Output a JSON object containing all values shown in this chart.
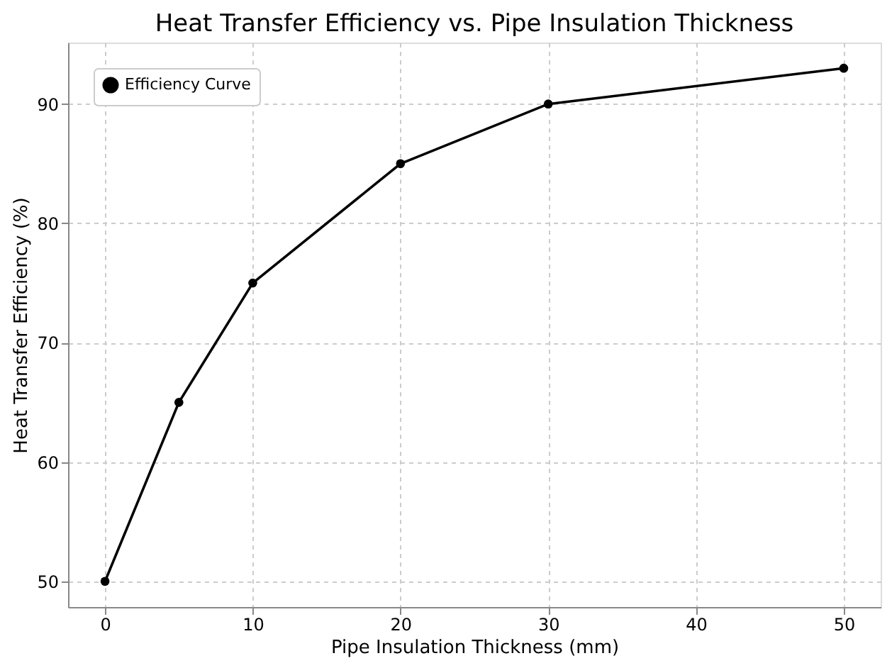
{
  "chart_data": {
    "type": "line",
    "title": "Heat Transfer Efficiency vs. Pipe Insulation Thickness",
    "xlabel": "Pipe Insulation Thickness (mm)",
    "ylabel": "Heat Transfer Efficiency (%)",
    "x": [
      0,
      5,
      10,
      20,
      30,
      50
    ],
    "series": [
      {
        "name": "Efficiency Curve",
        "color": "#000000",
        "values": [
          50,
          65,
          75,
          85,
          90,
          93
        ]
      }
    ],
    "xlim": [
      -2.5,
      52.5
    ],
    "xticks": [
      0,
      10,
      20,
      30,
      40,
      50
    ],
    "ylim": [
      47.85,
      95.15
    ],
    "yticks": [
      50,
      60,
      70,
      80,
      90
    ],
    "grid": true,
    "legend": "top left",
    "marker": "circle",
    "line_style": "solid"
  }
}
